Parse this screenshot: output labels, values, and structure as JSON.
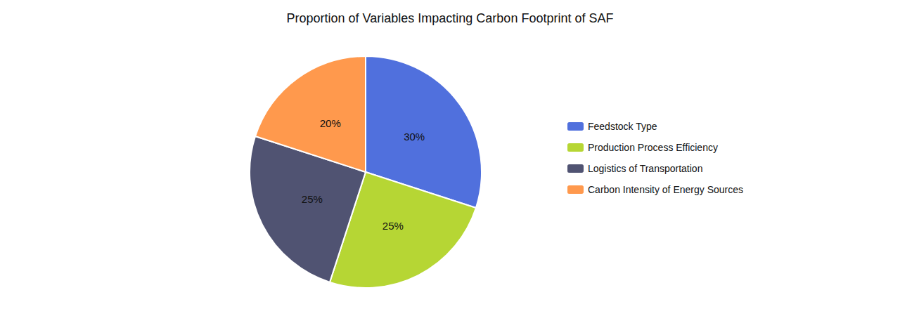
{
  "chart_data": {
    "type": "pie",
    "title": "Proportion of Variables Impacting Carbon Footprint of SAF",
    "categories": [
      "Feedstock Type",
      "Production Process Efficiency",
      "Logistics of Transportation",
      "Carbon Intensity of Energy Sources"
    ],
    "values": [
      30,
      25,
      25,
      20
    ],
    "value_labels": [
      "30%",
      "25%",
      "25%",
      "20%"
    ],
    "data_labels": true,
    "legend": "right"
  }
}
